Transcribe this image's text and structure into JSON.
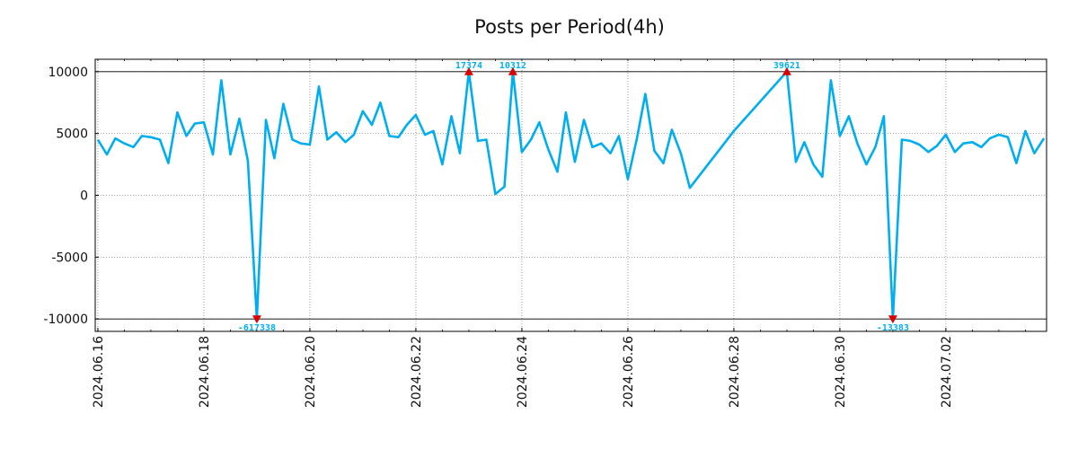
{
  "chart_data": {
    "type": "line",
    "title": "Posts per Period(4h)",
    "xlabel": "",
    "ylabel": "",
    "grid": true,
    "line_color": "#00AEEF",
    "marker_color": "#DD0000",
    "annotation_color": "#00AEEF",
    "x_start": "2024.06.16",
    "x_unit": "days",
    "xlim": [
      -0.05,
      17.9
    ],
    "ylim": [
      -11000,
      11000
    ],
    "clip_lines": [
      10000,
      -10000
    ],
    "yticks": [
      {
        "value": 10000,
        "label": "10000"
      },
      {
        "value": 5000,
        "label": "5000"
      },
      {
        "value": 0,
        "label": "0"
      },
      {
        "value": -5000,
        "label": "-5000"
      },
      {
        "value": -10000,
        "label": "-10000"
      }
    ],
    "xticks": [
      {
        "value": 0,
        "label": "2024.06.16"
      },
      {
        "value": 2,
        "label": "2024.06.18"
      },
      {
        "value": 4,
        "label": "2024.06.20"
      },
      {
        "value": 6,
        "label": "2024.06.22"
      },
      {
        "value": 8,
        "label": "2024.06.24"
      },
      {
        "value": 10,
        "label": "2024.06.26"
      },
      {
        "value": 12,
        "label": "2024.06.28"
      },
      {
        "value": 14,
        "label": "2024.06.30"
      },
      {
        "value": 16,
        "label": "2024.07.02"
      }
    ],
    "series": [
      {
        "name": "posts",
        "x": [
          0.0,
          0.17,
          0.33,
          0.5,
          0.67,
          0.83,
          1.0,
          1.17,
          1.33,
          1.5,
          1.67,
          1.83,
          2.0,
          2.17,
          2.33,
          2.5,
          2.67,
          2.83,
          3.0,
          3.17,
          3.33,
          3.5,
          3.67,
          3.83,
          4.0,
          4.17,
          4.33,
          4.5,
          4.67,
          4.83,
          5.0,
          5.17,
          5.33,
          5.5,
          5.67,
          5.83,
          6.0,
          6.17,
          6.33,
          6.5,
          6.67,
          6.83,
          7.0,
          7.17,
          7.33,
          7.5,
          7.67,
          7.83,
          8.0,
          8.17,
          8.33,
          8.5,
          8.67,
          8.83,
          9.0,
          9.17,
          9.33,
          9.5,
          9.67,
          9.83,
          10.0,
          10.17,
          10.33,
          10.5,
          10.67,
          10.83,
          11.0,
          11.17,
          12.0,
          13.0,
          13.17,
          13.33,
          13.5,
          13.67,
          13.83,
          14.0,
          14.17,
          14.33,
          14.5,
          14.67,
          14.83,
          15.0,
          15.17,
          15.33,
          15.5,
          15.67,
          15.83,
          16.0,
          16.17,
          16.33,
          16.5,
          16.67,
          16.83,
          17.0,
          17.17,
          17.33,
          17.5,
          17.67,
          17.85
        ],
        "values": [
          4500,
          3300,
          4600,
          4200,
          3900,
          4800,
          4700,
          4500,
          2600,
          6700,
          4800,
          5800,
          5900,
          3300,
          9300,
          3300,
          6200,
          2800,
          -10000,
          6100,
          3000,
          7400,
          4500,
          4200,
          4100,
          8800,
          4500,
          5100,
          4300,
          4900,
          6800,
          5700,
          7500,
          4800,
          4700,
          5700,
          6500,
          4900,
          5200,
          2500,
          6400,
          3400,
          10000,
          4400,
          4500,
          100,
          700,
          10000,
          3500,
          4500,
          5900,
          3700,
          1900,
          6700,
          2700,
          6100,
          3900,
          4200,
          3400,
          4800,
          1300,
          4600,
          8200,
          3600,
          2600,
          5300,
          3400,
          600,
          5200,
          10000,
          2700,
          4300,
          2500,
          1500,
          9300,
          4800,
          6400,
          4200,
          2500,
          3900,
          6400,
          -10000,
          4500,
          4400,
          4100,
          3500,
          4000,
          4900,
          3500,
          4200,
          4300,
          3900,
          4600,
          4900,
          4700,
          2600,
          5200,
          3400,
          4600
        ]
      }
    ],
    "annotations": [
      {
        "x": 3.0,
        "y": -10000,
        "label": "-617338",
        "marker": "down"
      },
      {
        "x": 7.0,
        "y": 10000,
        "label": "17374",
        "marker": "up"
      },
      {
        "x": 7.83,
        "y": 10000,
        "label": "10312",
        "marker": "up"
      },
      {
        "x": 13.0,
        "y": 10000,
        "label": "39621",
        "marker": "up"
      },
      {
        "x": 15.0,
        "y": -10000,
        "label": "-13383",
        "marker": "down"
      }
    ]
  }
}
